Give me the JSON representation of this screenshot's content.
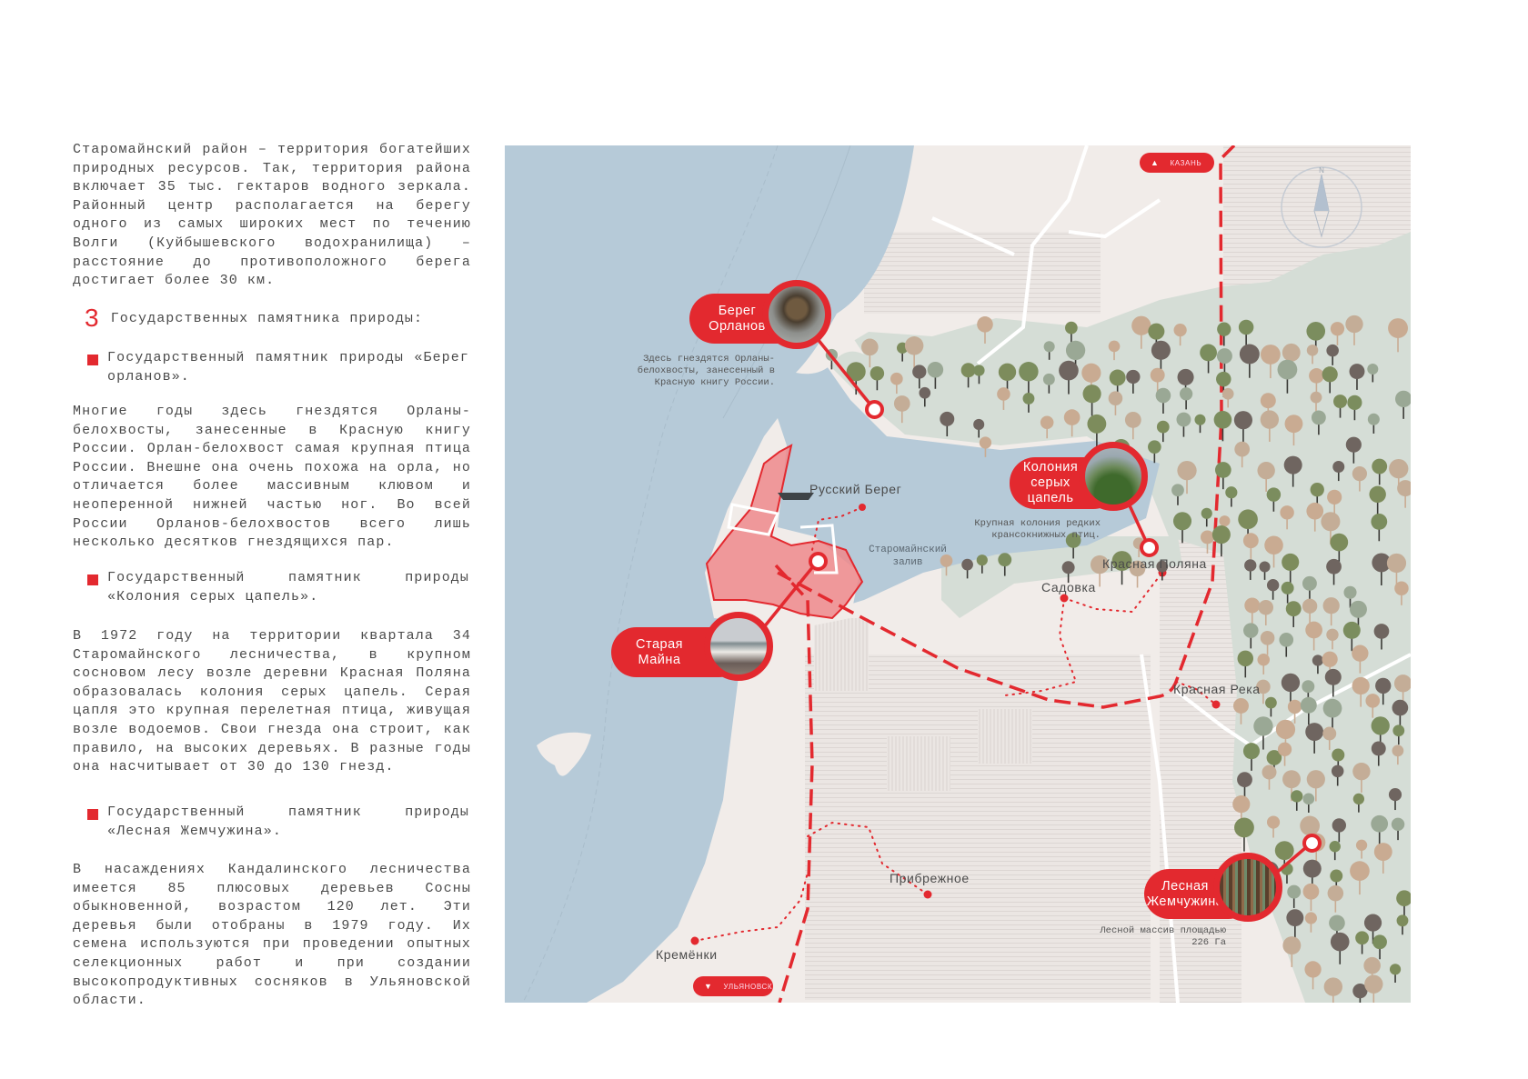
{
  "text_panel": {
    "intro": "Старомайнский район – территория богатейших природных ресурсов. Так, территория района включает 35 тыс. гектаров водного зеркала. Районный центр располагается на берегу одного из самых широких мест по течению Волги (Куйбышевского водохранилища) – расстояние до противоположного берега достигает более 30 км.",
    "heading_number": "3",
    "heading_text": "Государственных памятника природы:",
    "monuments": [
      {
        "title": "Государственный памятник природы «Берег орланов».",
        "description": "Многие годы здесь гнездятся Орланы-белохвосты, занесенные в Красную книгу России. Орлан-белохвост самая крупная птица России. Внешне она очень похожа на орла, но отличается более массивным клювом и неоперенной нижней частью ног. Во всей России Орланов-белохвостов всего лишь несколько десятков гнездящихся пар."
      },
      {
        "title": "Государственный памятник природы «Колония серых цапель».",
        "description": "В 1972 году на территории квартала 34 Старомайнского лесничества, в крупном сосновом лесу возле деревни Красная Поляна образовалась колония серых цапель. Серая цапля это крупная перелетная птица, живущая возле водоемов. Свои гнезда она строит, как правило, на высоких деревьях. В разные годы она насчитывает от 30 до 130 гнезд."
      },
      {
        "title": "Государственный памятник природы «Лесная Жемчужина».",
        "description": "В насаждениях Кандалинского лесничества имеется 85 плюсовых деревьев Сосны обыкновенной, возрастом 120 лет. Эти деревья были отобраны в 1979 году. Их семена используются при проведении опытных селекционных работ и при создании высокопродуктивных сосняков в Ульяновской области."
      }
    ]
  },
  "map": {
    "callouts": [
      {
        "label": "Берег\nОрланов",
        "description": "Здесь гнездятся Орланы-\nбелохвосты, занесенный в\nКрасную книгу России.",
        "photo": "white-tailed-eagle"
      },
      {
        "label": "Колония\nсерых\nцапель",
        "description": "Крупная колония редких\nкрансокнижных птиц.",
        "photo": "grey-heron"
      },
      {
        "label": "Старая\nМайна",
        "photo": "church-village"
      },
      {
        "label": "Лесная\nЖемчужина",
        "description": "Лесной массив площадью\n226 Га",
        "photo": "pine-forest"
      }
    ],
    "places": {
      "russky_bereg": "Русский Берег",
      "krasnaya_polyana": "Красная Поляна",
      "sadovka": "Садовка",
      "krasnaya_reka": "Красная Река",
      "pribrezhnoe": "Прибрежное",
      "kremenki": "Кремёнки"
    },
    "water_label": "Старомайнский\nзалив",
    "direction_signs": {
      "north": {
        "label": "КАЗАНЬ",
        "arrow": "▲"
      },
      "south": {
        "label": "УЛЬЯНОВСК",
        "arrow": "▼"
      }
    },
    "compass_label": "N",
    "colors": {
      "accent": "#e3292f",
      "water": "#b6cad8",
      "land": "#f1ece9",
      "forest": "#d5ddd6",
      "town": "#ef8a8c"
    }
  }
}
